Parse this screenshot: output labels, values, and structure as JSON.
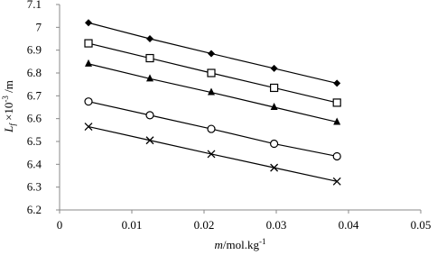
{
  "chart_data": {
    "type": "line",
    "x_label": {
      "italic": "m",
      "text": "/mol.kg",
      "sup": "-1"
    },
    "y_label": {
      "italic": "L",
      "sub": "f",
      "text": " ×10",
      "sup": "-3",
      "unit": " /m"
    },
    "x": [
      0.004,
      0.0125,
      0.021,
      0.0297,
      0.0384
    ],
    "series": [
      {
        "color": "#000000",
        "marker": "diamond",
        "values": [
          7.02,
          6.95,
          6.885,
          6.82,
          6.755
        ]
      },
      {
        "color": "#000000",
        "marker": "square-open",
        "values": [
          6.93,
          6.865,
          6.8,
          6.735,
          6.67
        ]
      },
      {
        "color": "#000000",
        "marker": "triangle",
        "values": [
          6.84,
          6.775,
          6.715,
          6.65,
          6.585
        ]
      },
      {
        "color": "#000000",
        "marker": "circle-open",
        "values": [
          6.675,
          6.615,
          6.555,
          6.49,
          6.435
        ]
      },
      {
        "color": "#000000",
        "marker": "cross",
        "values": [
          6.565,
          6.505,
          6.445,
          6.385,
          6.325
        ]
      }
    ],
    "xlim": [
      0,
      0.05
    ],
    "xticks": [
      0,
      0.01,
      0.02,
      0.03,
      0.04,
      0.05
    ],
    "ylim": [
      6.2,
      7.1
    ],
    "yticks": [
      6.2,
      6.3,
      6.4,
      6.5,
      6.6,
      6.7,
      6.8,
      6.9,
      7,
      7.1
    ],
    "grid": false
  }
}
